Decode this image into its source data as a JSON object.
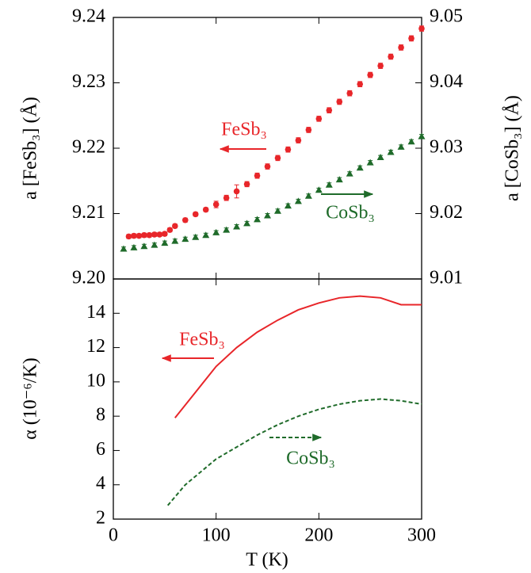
{
  "chart_data": [
    {
      "type": "scatter",
      "y_label": "a [FeSb₃] (Å)",
      "y2_label": "a [CoSb₃] (Å)",
      "xlim": [
        0,
        300
      ],
      "ylim": [
        9.2,
        9.24
      ],
      "yticks": [
        {
          "value": 9.2,
          "label": "9.20"
        },
        9.21,
        9.22,
        9.23,
        9.24
      ],
      "y2lim": [
        9.01,
        9.05
      ],
      "y2ticks": [
        9.01,
        9.02,
        9.03,
        9.04,
        9.05
      ],
      "series": [
        {
          "name": "FeSb₃",
          "color": "#e8262a",
          "marker": "circle",
          "x": [
            15,
            20,
            25,
            30,
            35,
            40,
            45,
            50,
            55,
            60,
            70,
            80,
            90,
            100,
            110,
            120,
            130,
            140,
            150,
            160,
            170,
            180,
            190,
            200,
            210,
            220,
            230,
            240,
            250,
            260,
            270,
            280,
            290,
            300
          ],
          "values": [
            9.2065,
            9.2066,
            9.2066,
            9.2067,
            9.2067,
            9.2068,
            9.2068,
            9.2069,
            9.2075,
            9.2081,
            9.209,
            9.2099,
            9.2106,
            9.2114,
            9.2124,
            9.2134,
            9.2145,
            9.2158,
            9.2172,
            9.2185,
            9.2198,
            9.2212,
            9.2228,
            9.2245,
            9.2258,
            9.2271,
            9.2284,
            9.2298,
            9.2312,
            9.2326,
            9.234,
            9.2354,
            9.2368,
            9.2383
          ],
          "errors": [
            0.0003,
            0.0003,
            0.0003,
            0.0003,
            0.0003,
            0.0003,
            0.0003,
            0.0003,
            0.0003,
            0.0003,
            0.0003,
            0.0003,
            0.0003,
            0.0005,
            0.0004,
            0.001,
            0.0004,
            0.0004,
            0.0004,
            0.0004,
            0.0004,
            0.0004,
            0.0004,
            0.0004,
            0.0004,
            0.0004,
            0.0004,
            0.0004,
            0.0004,
            0.0004,
            0.0004,
            0.0004,
            0.0004,
            0.0004
          ]
        },
        {
          "name": "CoSb₃",
          "color": "#1f6b2a",
          "marker": "triangle",
          "axis": "y2",
          "x": [
            10,
            20,
            30,
            40,
            50,
            60,
            70,
            80,
            90,
            100,
            110,
            120,
            130,
            140,
            150,
            160,
            170,
            180,
            190,
            200,
            210,
            220,
            230,
            240,
            250,
            260,
            270,
            280,
            290,
            300
          ],
          "values": [
            9.0146,
            9.0148,
            9.015,
            9.0152,
            9.0155,
            9.0158,
            9.0161,
            9.0164,
            9.0167,
            9.0171,
            9.0175,
            9.018,
            9.0185,
            9.0191,
            9.0197,
            9.0204,
            9.0212,
            9.0219,
            9.0227,
            9.0236,
            9.0244,
            9.0252,
            9.0261,
            9.027,
            9.0278,
            9.0286,
            9.0294,
            9.0302,
            9.031,
            9.0318
          ],
          "errors": [
            0.0003,
            0.0003,
            0.0003,
            0.0003,
            0.0003,
            0.0003,
            0.0003,
            0.0003,
            0.0003,
            0.0003,
            0.0003,
            0.0003,
            0.0003,
            0.0003,
            0.0003,
            0.0003,
            0.0003,
            0.0003,
            0.0003,
            0.0003,
            0.0003,
            0.0003,
            0.0003,
            0.0003,
            0.0003,
            0.0003,
            0.0003,
            0.0003,
            0.0003,
            0.0003
          ]
        }
      ]
    },
    {
      "type": "line",
      "x_label": "T (K)",
      "y_label": "α (10⁻⁶/K)",
      "xlim": [
        0,
        300
      ],
      "xticks": [
        0,
        100,
        200,
        300
      ],
      "ylim": [
        2,
        16
      ],
      "yticks": [
        2,
        4,
        6,
        8,
        10,
        12,
        14
      ],
      "series": [
        {
          "name": "FeSb₃",
          "color": "#e8262a",
          "dash": "solid",
          "x": [
            60,
            80,
            100,
            120,
            140,
            160,
            180,
            200,
            220,
            240,
            260,
            280,
            300
          ],
          "values": [
            7.9,
            9.4,
            10.9,
            12.0,
            12.9,
            13.6,
            14.2,
            14.6,
            14.9,
            15.0,
            14.9,
            14.5,
            14.5
          ]
        },
        {
          "name": "CoSb₃",
          "color": "#1f6b2a",
          "dash": "dashed",
          "x": [
            53,
            70,
            100,
            120,
            140,
            160,
            180,
            200,
            220,
            240,
            260,
            280,
            300
          ],
          "values": [
            2.8,
            4.0,
            5.5,
            6.2,
            6.9,
            7.5,
            8.0,
            8.4,
            8.7,
            8.9,
            9.0,
            8.9,
            8.7
          ]
        }
      ]
    }
  ]
}
